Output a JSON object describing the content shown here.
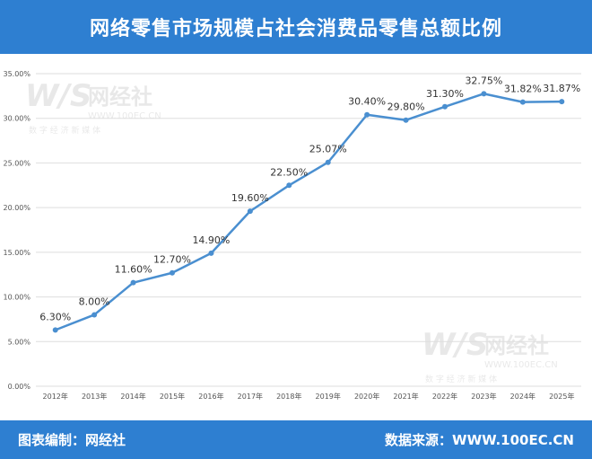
{
  "header": {
    "title": "网络零售市场规模占社会消费品零售总额比例"
  },
  "footer": {
    "left": "图表编制：网经社",
    "right": "数据来源：WWW.100EC.CN"
  },
  "watermark": {
    "brand": "网经社",
    "url": "WWW.100EC.CN",
    "tagline": "数 字 经 济 新 媒 体"
  },
  "colors": {
    "line": "#4a8fd0",
    "header": "#2e7fd1",
    "grid": "#dedede"
  },
  "chart_data": {
    "type": "line",
    "title": "网络零售市场规模占社会消费品零售总额比例",
    "categories": [
      "2012年",
      "2013年",
      "2014年",
      "2015年",
      "2016年",
      "2017年",
      "2018年",
      "2019年",
      "2020年",
      "2021年",
      "2022年",
      "2023年",
      "2024年",
      "2025年"
    ],
    "values": [
      6.3,
      8.0,
      11.6,
      12.7,
      14.9,
      19.6,
      22.5,
      25.07,
      30.4,
      29.8,
      31.3,
      32.75,
      31.82,
      31.87
    ],
    "data_labels": [
      "6.30%",
      "8.00%",
      "11.60%",
      "12.70%",
      "14.90%",
      "19.60%",
      "22.50%",
      "25.07%",
      "30.40%",
      "29.80%",
      "31.30%",
      "32.75%",
      "31.82%",
      "31.87%"
    ],
    "y_ticks": [
      "0.00%",
      "5.00%",
      "10.00%",
      "15.00%",
      "20.00%",
      "25.00%",
      "30.00%",
      "35.00%"
    ],
    "ylim": [
      0,
      35
    ],
    "grid": true,
    "legend": "none"
  }
}
